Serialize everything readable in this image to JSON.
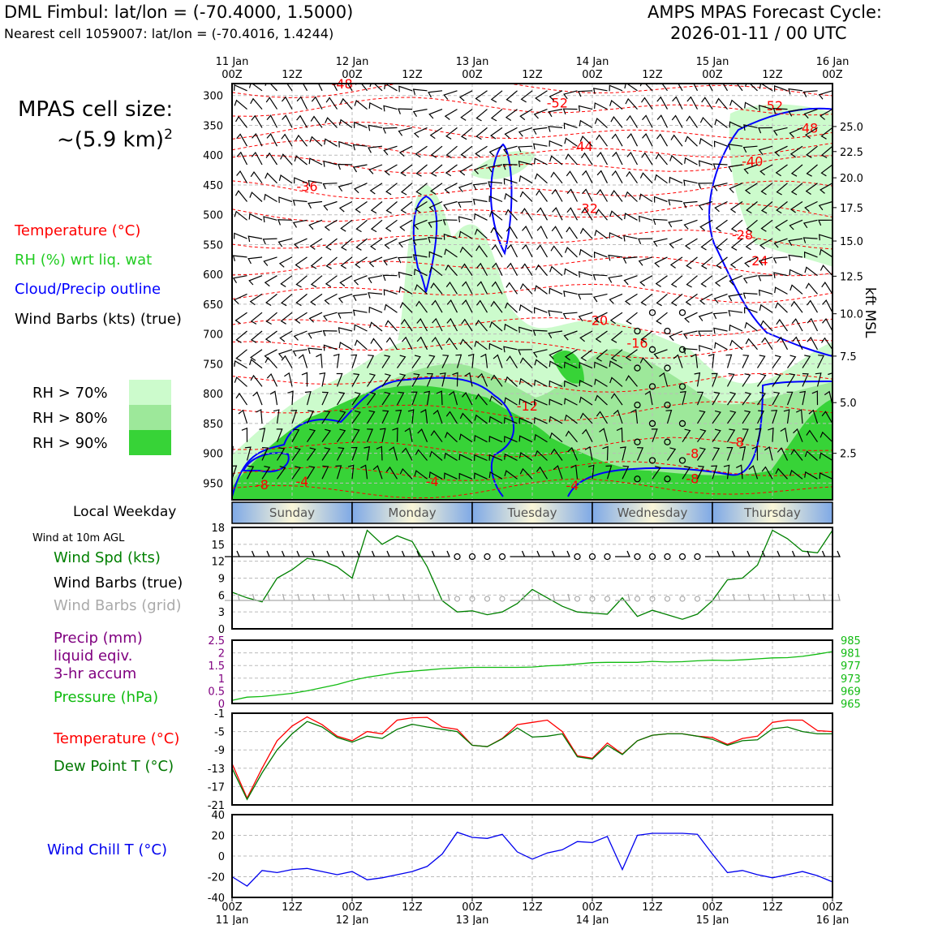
{
  "header": {
    "title_left": "DML Fimbul: lat/lon = (-70.4000, 1.5000)",
    "subtitle_left": "Nearest cell 1059007: lat/lon = (-70.4016, 1.4244)",
    "title_right_line1": "AMPS MPAS Forecast Cycle:",
    "title_right_line2": "2026-01-11 / 00 UTC"
  },
  "left_panel": {
    "cell_size_line1": "MPAS cell size:",
    "cell_size_line2": "~(5.9 km)",
    "cell_size_exp": "2",
    "legend_temperature": "Temperature (°C)",
    "legend_rh": "RH (%) wrt liq. wat",
    "legend_cloud": "Cloud/Precip outline",
    "legend_wind": "Wind Barbs (kts) (true)",
    "rh_legend": [
      {
        "label": "RH > 70%",
        "color": "#ccfbcc"
      },
      {
        "label": "RH > 80%",
        "color": "#9de89a"
      },
      {
        "label": "RH > 90%",
        "color": "#37d337"
      }
    ],
    "local_weekday": "Local Weekday",
    "wind10m": "Wind at 10m AGL",
    "wind_spd": "Wind Spd (kts)",
    "wind_barbs_true": "Wind Barbs (true)",
    "wind_barbs_grid": "Wind Barbs (grid)",
    "precip_line1": "Precip (mm)",
    "precip_line2": "liquid eqiv.",
    "precip_line3": "3-hr accum",
    "pressure": "Pressure (hPa)",
    "temperature": "Temperature (°C)",
    "dewpoint": "Dew Point T (°C)",
    "windchill": "Wind Chill T (°C)"
  },
  "colors": {
    "temp": "#ff0000",
    "rh": "#22cc22",
    "cloud": "#0000ff",
    "wind": "#000000",
    "grid_barb": "#aaaaaa",
    "wind_spd": "#008000",
    "precip": "#800080",
    "pressure": "#11bb11",
    "dewpoint": "#007700",
    "windchill": "#0000ee"
  },
  "chart_data": [
    {
      "type": "heatmap",
      "name": "cross-section",
      "xticks_top": [
        {
          "t": 0,
          "label": "11 Jan\n00Z"
        },
        {
          "t": 12,
          "label": "12Z"
        },
        {
          "t": 24,
          "label": "12 Jan\n00Z"
        },
        {
          "t": 36,
          "label": "12Z"
        },
        {
          "t": 48,
          "label": "13 Jan\n00Z"
        },
        {
          "t": 60,
          "label": "12Z"
        },
        {
          "t": 72,
          "label": "14 Jan\n00Z"
        },
        {
          "t": 84,
          "label": "12Z"
        },
        {
          "t": 96,
          "label": "15 Jan\n00Z"
        },
        {
          "t": 108,
          "label": "12Z"
        },
        {
          "t": 120,
          "label": "16 Jan\n00Z"
        }
      ],
      "pressure_ticks": [
        300,
        350,
        400,
        450,
        500,
        550,
        600,
        650,
        700,
        750,
        800,
        850,
        900,
        950
      ],
      "plim": [
        280,
        978
      ],
      "kft_ticks": [
        {
          "p": 352,
          "label": "25.0"
        },
        {
          "p": 394,
          "label": "22.5"
        },
        {
          "p": 438,
          "label": "20.0"
        },
        {
          "p": 488,
          "label": "17.5"
        },
        {
          "p": 544,
          "label": "15.0"
        },
        {
          "p": 603,
          "label": "12.5"
        },
        {
          "p": 666,
          "label": "10.0"
        },
        {
          "p": 737,
          "label": "7.5"
        },
        {
          "p": 815,
          "label": "5.0"
        },
        {
          "p": 900,
          "label": "2.5"
        }
      ],
      "kft_label": "kft MSL",
      "temp_labels": [
        {
          "t": 22,
          "p": 288,
          "label": "-48"
        },
        {
          "t": 65,
          "p": 320,
          "label": "-52"
        },
        {
          "t": 108,
          "p": 325,
          "label": "-52"
        },
        {
          "t": 115,
          "p": 362,
          "label": "-48"
        },
        {
          "t": 70,
          "p": 393,
          "label": "-44"
        },
        {
          "t": 104,
          "p": 418,
          "label": "-40"
        },
        {
          "t": 15,
          "p": 460,
          "label": "-36"
        },
        {
          "t": 71,
          "p": 497,
          "label": "-32"
        },
        {
          "t": 102,
          "p": 541,
          "label": "-28"
        },
        {
          "t": 105,
          "p": 585,
          "label": "-24"
        },
        {
          "t": 73,
          "p": 685,
          "label": "-20"
        },
        {
          "t": 81,
          "p": 723,
          "label": "-16"
        },
        {
          "t": 59,
          "p": 828,
          "label": "-12"
        },
        {
          "t": 101,
          "p": 889,
          "label": "-8"
        },
        {
          "t": 92,
          "p": 908,
          "label": "-8"
        },
        {
          "t": 92,
          "p": 950,
          "label": "-8"
        },
        {
          "t": 6,
          "p": 960,
          "label": "-8"
        },
        {
          "t": 14,
          "p": 955,
          "label": "-4"
        },
        {
          "t": 40,
          "p": 955,
          "label": "-4"
        },
        {
          "t": 68,
          "p": 962,
          "label": "-4"
        }
      ]
    },
    {
      "type": "table",
      "name": "local-weekday",
      "days": [
        "Sunday",
        "Monday",
        "Tuesday",
        "Wednesday",
        "Thursday"
      ]
    },
    {
      "type": "line",
      "name": "wind-10m",
      "yticks": [
        0,
        3,
        6,
        9,
        12,
        15,
        18
      ],
      "ylim": [
        0,
        18
      ],
      "x": [
        0,
        3,
        6,
        9,
        12,
        15,
        18,
        21,
        24,
        27,
        30,
        33,
        36,
        39,
        42,
        45,
        48,
        51,
        54,
        57,
        60,
        63,
        66,
        69,
        72,
        75,
        78,
        81,
        84,
        87,
        90,
        93,
        96,
        99,
        102,
        105,
        108,
        111,
        114,
        117,
        120
      ],
      "series": [
        {
          "name": "Wind Spd (kts)",
          "values": [
            6.5,
            5.5,
            4.8,
            9.0,
            10.5,
            12.5,
            12.1,
            11.0,
            9.0,
            17.5,
            15.0,
            16.5,
            15.5,
            11.0,
            5.0,
            3.0,
            3.2,
            2.5,
            3.0,
            4.5,
            7.0,
            5.5,
            4.0,
            3.0,
            2.8,
            2.6,
            5.5,
            2.2,
            3.3,
            2.5,
            1.7,
            2.6,
            5.0,
            8.7,
            9.0,
            11.3,
            17.5,
            16.0,
            13.8,
            13.5,
            17.5
          ]
        }
      ]
    },
    {
      "type": "line",
      "name": "precip-pressure",
      "precip_ticks": [
        0,
        0.5,
        1.0,
        1.5,
        2.0,
        2.5
      ],
      "precip_lim": [
        0,
        2.5
      ],
      "pressure_ticks": [
        965,
        969,
        973,
        977,
        981,
        985
      ],
      "pressure_lim": [
        965,
        985
      ],
      "pressure_unit": "(hPa)",
      "x": [
        0,
        3,
        6,
        9,
        12,
        15,
        18,
        21,
        24,
        27,
        30,
        33,
        36,
        39,
        42,
        45,
        48,
        51,
        54,
        57,
        60,
        63,
        66,
        69,
        72,
        75,
        78,
        81,
        84,
        87,
        90,
        93,
        96,
        99,
        102,
        105,
        108,
        111,
        114,
        117,
        120
      ],
      "series": [
        {
          "name": "Pressure (hPa)",
          "values": [
            966.0,
            967.0,
            967.2,
            967.7,
            968.2,
            969.0,
            970.0,
            971.0,
            972.3,
            973.3,
            974.0,
            974.8,
            975.2,
            975.6,
            976.0,
            976.2,
            976.4,
            976.4,
            976.4,
            976.4,
            976.5,
            976.9,
            977.1,
            977.5,
            977.9,
            978.0,
            978.0,
            978.0,
            978.3,
            978.1,
            978.2,
            978.5,
            978.7,
            978.6,
            978.8,
            979.1,
            979.4,
            979.5,
            979.9,
            980.6,
            981.4
          ]
        }
      ]
    },
    {
      "type": "line",
      "name": "temperature-dewpoint",
      "yticks": [
        -21,
        -17,
        -13,
        -9,
        -5,
        -1
      ],
      "ylim": [
        -21,
        -1
      ],
      "x": [
        0,
        3,
        6,
        9,
        12,
        15,
        18,
        21,
        24,
        27,
        30,
        33,
        36,
        39,
        42,
        45,
        48,
        51,
        54,
        57,
        60,
        63,
        66,
        69,
        72,
        75,
        78,
        81,
        84,
        87,
        90,
        93,
        96,
        99,
        102,
        105,
        108,
        111,
        114,
        117,
        120
      ],
      "series": [
        {
          "name": "Temperature (°C)",
          "values": [
            -12.0,
            -19.5,
            -13.0,
            -7.0,
            -3.8,
            -1.8,
            -3.5,
            -6.0,
            -7.0,
            -5.0,
            -5.5,
            -2.5,
            -2.0,
            -1.9,
            -4.0,
            -4.5,
            -8.0,
            -8.3,
            -6.5,
            -3.5,
            -3.0,
            -2.5,
            -5.0,
            -10.3,
            -10.8,
            -7.5,
            -9.9,
            -7.0,
            -5.8,
            -5.5,
            -5.5,
            -6.0,
            -6.3,
            -7.8,
            -6.5,
            -6.0,
            -3.0,
            -2.5,
            -2.5,
            -4.8,
            -5.0
          ]
        },
        {
          "name": "Dew Point T (°C)",
          "values": [
            -13.0,
            -19.8,
            -14.0,
            -9.0,
            -5.5,
            -2.8,
            -4.0,
            -6.3,
            -7.3,
            -6.0,
            -6.5,
            -4.5,
            -3.4,
            -4.0,
            -4.5,
            -5.0,
            -8.0,
            -8.3,
            -6.6,
            -4.2,
            -6.2,
            -6.0,
            -5.5,
            -10.5,
            -11.0,
            -8.0,
            -10.0,
            -7.0,
            -5.8,
            -5.5,
            -5.5,
            -6.0,
            -6.7,
            -8.0,
            -7.0,
            -6.8,
            -4.4,
            -4.0,
            -5.0,
            -5.5,
            -5.5
          ]
        }
      ]
    },
    {
      "type": "line",
      "name": "wind-chill",
      "yticks": [
        -40,
        -20,
        0,
        20,
        40
      ],
      "ylim": [
        -40,
        40
      ],
      "x": [
        0,
        3,
        6,
        9,
        12,
        15,
        18,
        21,
        24,
        27,
        30,
        33,
        36,
        39,
        42,
        45,
        48,
        51,
        54,
        57,
        60,
        63,
        66,
        69,
        72,
        75,
        78,
        81,
        84,
        87,
        90,
        93,
        96,
        99,
        102,
        105,
        108,
        111,
        114,
        117,
        120
      ],
      "series": [
        {
          "name": "Wind Chill T (°C)",
          "values": [
            -20,
            -29,
            -14,
            -16,
            -13,
            -12,
            -15,
            -18,
            -15,
            -23,
            -21,
            -18,
            -15,
            -10,
            2,
            23,
            18,
            17,
            21,
            4,
            -3,
            3,
            6,
            14,
            13,
            19,
            -13,
            20,
            22,
            22,
            22,
            21,
            2,
            -16,
            -14,
            -18,
            -21,
            -18,
            -15,
            -19,
            -25
          ]
        }
      ]
    }
  ],
  "bottom_axis": [
    {
      "t": 0,
      "l1": "00Z",
      "l2": "11 Jan"
    },
    {
      "t": 12,
      "l1": "12Z",
      "l2": ""
    },
    {
      "t": 24,
      "l1": "00Z",
      "l2": "12 Jan"
    },
    {
      "t": 36,
      "l1": "12Z",
      "l2": ""
    },
    {
      "t": 48,
      "l1": "00Z",
      "l2": "13 Jan"
    },
    {
      "t": 60,
      "l1": "12Z",
      "l2": ""
    },
    {
      "t": 72,
      "l1": "00Z",
      "l2": "14 Jan"
    },
    {
      "t": 84,
      "l1": "12Z",
      "l2": ""
    },
    {
      "t": 96,
      "l1": "00Z",
      "l2": "15 Jan"
    },
    {
      "t": 108,
      "l1": "12Z",
      "l2": ""
    },
    {
      "t": 120,
      "l1": "00Z",
      "l2": "16 Jan"
    }
  ]
}
